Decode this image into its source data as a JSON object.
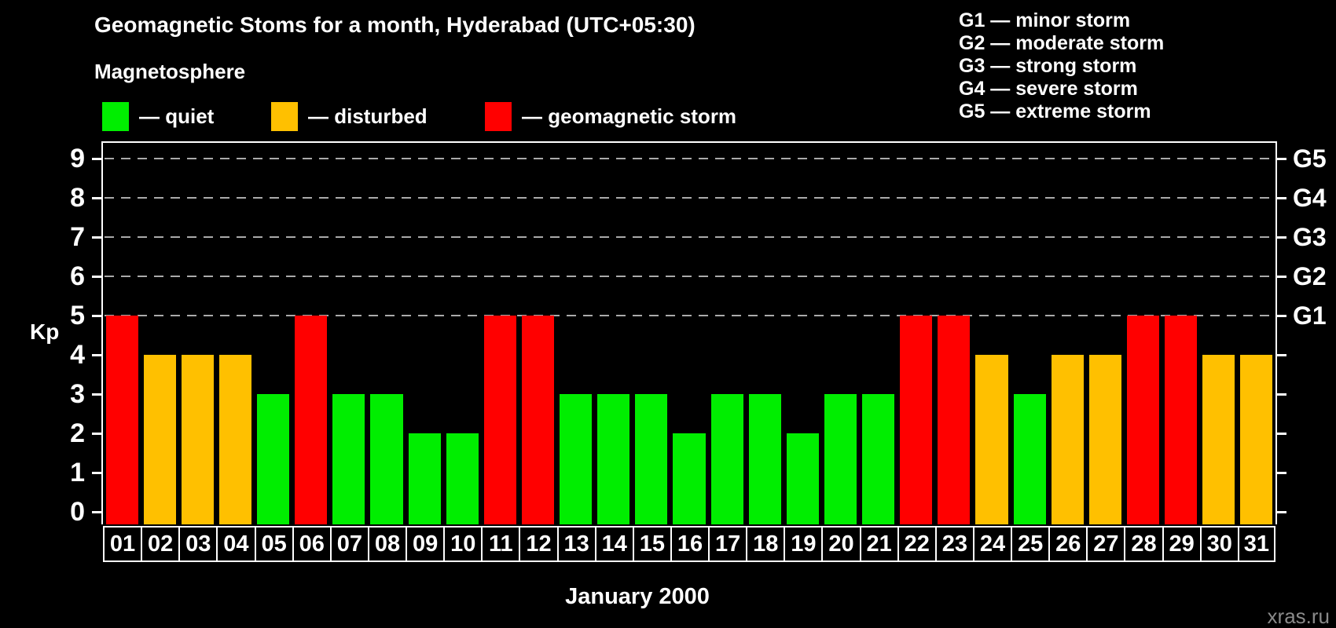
{
  "title": "Geomagnetic Stoms for a month, Hyderabad (UTC+05:30)",
  "legend": {
    "title": "Magnetosphere",
    "items": [
      {
        "key": "quiet",
        "label": "— quiet",
        "color": "#00ee00"
      },
      {
        "key": "disturbed",
        "label": "— disturbed",
        "color": "#ffc000"
      },
      {
        "key": "storm",
        "label": "— geomagnetic storm",
        "color": "#ff0000"
      }
    ]
  },
  "g_scale_legend": [
    "G1 — minor storm",
    "G2 — moderate storm",
    "G3 — strong storm",
    "G4 — severe storm",
    "G5 — extreme storm"
  ],
  "chart_data": {
    "type": "bar",
    "title": "Geomagnetic Stoms for a month, Hyderabad (UTC+05:30)",
    "xlabel": "January 2000",
    "ylabel": "Kp",
    "ylim": [
      0,
      9
    ],
    "grid": "dashed horizontal at Kp 5-9",
    "categories": [
      "01",
      "02",
      "03",
      "04",
      "05",
      "06",
      "07",
      "08",
      "09",
      "10",
      "11",
      "12",
      "13",
      "14",
      "15",
      "16",
      "17",
      "18",
      "19",
      "20",
      "21",
      "22",
      "23",
      "24",
      "25",
      "26",
      "27",
      "28",
      "29",
      "30",
      "31"
    ],
    "values": [
      5,
      4,
      4,
      4,
      3,
      5,
      3,
      3,
      2,
      2,
      5,
      5,
      3,
      3,
      3,
      2,
      3,
      3,
      2,
      3,
      3,
      5,
      5,
      4,
      3,
      4,
      4,
      5,
      5,
      4,
      4
    ],
    "color_rules": {
      "storm_min": 5,
      "disturbed_min": 4
    },
    "y_ticks": [
      0,
      1,
      2,
      3,
      4,
      5,
      6,
      7,
      8,
      9
    ],
    "gridlines_at": [
      5,
      6,
      7,
      8,
      9
    ],
    "right_axis_labels": [
      {
        "kp": 5,
        "label": "G1"
      },
      {
        "kp": 6,
        "label": "G2"
      },
      {
        "kp": 7,
        "label": "G3"
      },
      {
        "kp": 8,
        "label": "G4"
      },
      {
        "kp": 9,
        "label": "G5"
      }
    ]
  },
  "colors": {
    "background": "#000000",
    "axis": "#ffffff",
    "grid": "#aaaaaa",
    "watermark_text": "#8a8a8a"
  },
  "watermark": "xras.ru"
}
